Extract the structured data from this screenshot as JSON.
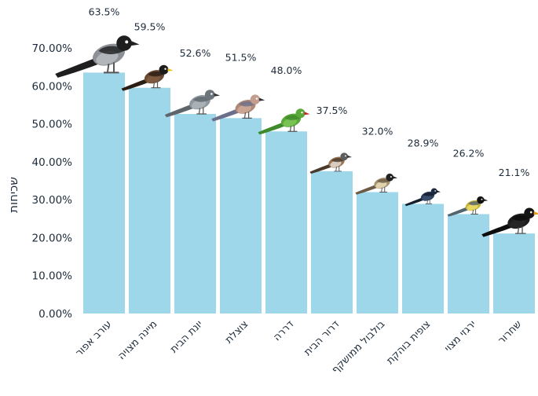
{
  "chart_data": {
    "type": "bar",
    "ylabel": "שכיחות",
    "xlabel": "",
    "ylim": [
      0,
      75
    ],
    "yticks": [
      0,
      10,
      20,
      30,
      40,
      50,
      60,
      70
    ],
    "ytick_labels": [
      "0.00%",
      "10.00%",
      "20.00%",
      "30.00%",
      "40.00%",
      "50.00%",
      "60.00%",
      "70.00%"
    ],
    "grid": false,
    "categories": [
      "עורב אפור",
      "מיינה מצויה",
      "יונת הבית",
      "צוצלת",
      "דררה",
      "דרור הבית",
      "בולבול ממושקף",
      "צופית בוהקת",
      "ירגזי מצוי",
      "שחרור"
    ],
    "values": [
      63.5,
      59.5,
      52.6,
      51.5,
      48.0,
      37.5,
      32.0,
      28.9,
      26.2,
      21.1
    ],
    "value_labels": [
      "63.5%",
      "59.5%",
      "52.6%",
      "51.5%",
      "48.0%",
      "37.5%",
      "32.0%",
      "28.9%",
      "26.2%",
      "21.1%"
    ],
    "bar_color": "#9fd7ea",
    "bird_icons": [
      "hooded-crow-icon",
      "common-myna-icon",
      "rock-dove-icon",
      "laughing-dove-icon",
      "rose-ringed-parakeet-icon",
      "house-sparrow-icon",
      "white-spectacled-bulbul-icon",
      "palestine-sunbird-icon",
      "great-tit-icon",
      "blackbird-icon"
    ]
  }
}
